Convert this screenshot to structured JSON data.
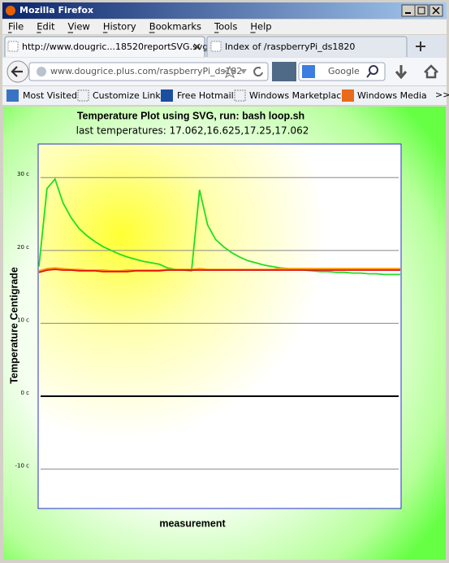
{
  "browser": {
    "window_title": "Mozilla Firefox",
    "menu": [
      "File",
      "Edit",
      "View",
      "History",
      "Bookmarks",
      "Tools",
      "Help"
    ],
    "tabs": [
      "http://www.dougric...18520reportSVG.svg",
      "Index of /raspberryPi_ds1820"
    ],
    "url": "www.dougrice.plus.com/raspberryPi_ds182",
    "search_placeholder": "Google",
    "bookmarks": [
      "Most Visited",
      "Customize Links",
      "Free Hotmail",
      "Windows Marketplace",
      "Windows Media"
    ],
    "bookmarks_overflow": ">>"
  },
  "chart_data": {
    "type": "line",
    "title": "Temperature Plot using SVG, run: bash loop.sh",
    "subtitle": "last temperatures: 17.062,16.625,17.25,17.062",
    "y_label": "Temperature Centigrade",
    "x_label": "measurement",
    "ylim": [
      -15.4,
      34.6
    ],
    "yticks": [
      {
        "value": 30,
        "label": "30 c"
      },
      {
        "value": 20,
        "label": "20 c"
      },
      {
        "value": 10,
        "label": "10 c"
      },
      {
        "value": 0,
        "label": "0 c"
      },
      {
        "value": -10,
        "label": "-10 c"
      }
    ],
    "grid": true,
    "series": [
      {
        "color": "#22dd22",
        "values": [
          17.8,
          28.5,
          29.8,
          26.5,
          24.5,
          23.0,
          22.0,
          21.2,
          20.5,
          20.0,
          19.5,
          19.1,
          18.8,
          18.5,
          18.3,
          18.1,
          17.6,
          17.4,
          17.3,
          17.2,
          28.3,
          23.5,
          21.5,
          20.5,
          19.7,
          19.1,
          18.6,
          18.3,
          18.0,
          17.8,
          17.6,
          17.5,
          17.4,
          17.3,
          17.2,
          17.1,
          17.1,
          17.0,
          17.0,
          16.9,
          16.9,
          16.8,
          16.8,
          16.7,
          16.7,
          16.7
        ]
      },
      {
        "color": "#ff9900",
        "values": [
          17.2,
          17.5,
          17.6,
          17.5,
          17.4,
          17.4,
          17.3,
          17.3,
          17.3,
          17.2,
          17.2,
          17.3,
          17.3,
          17.3,
          17.3,
          17.3,
          17.4,
          17.4,
          17.4,
          17.4,
          17.5,
          17.4,
          17.4,
          17.4,
          17.4,
          17.4,
          17.4,
          17.4,
          17.4,
          17.4,
          17.5,
          17.5,
          17.5,
          17.5,
          17.5,
          17.5,
          17.5,
          17.5,
          17.5,
          17.5,
          17.5,
          17.5,
          17.5,
          17.5,
          17.5,
          17.5
        ]
      },
      {
        "color": "#dd1111",
        "values": [
          17.0,
          17.3,
          17.4,
          17.3,
          17.3,
          17.2,
          17.2,
          17.2,
          17.1,
          17.1,
          17.1,
          17.1,
          17.2,
          17.2,
          17.2,
          17.2,
          17.3,
          17.3,
          17.3,
          17.3,
          17.3,
          17.3,
          17.3,
          17.3,
          17.3,
          17.3,
          17.3,
          17.3,
          17.3,
          17.3,
          17.3,
          17.3,
          17.3,
          17.3,
          17.3,
          17.3,
          17.3,
          17.3,
          17.3,
          17.3,
          17.3,
          17.3,
          17.3,
          17.3,
          17.3,
          17.3
        ]
      }
    ]
  }
}
